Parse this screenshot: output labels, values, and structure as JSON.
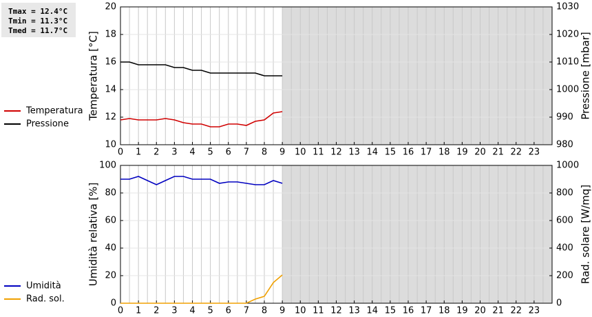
{
  "stats": [
    "Tmax = 12.4°C",
    "Tmin = 11.3°C",
    "Tmed = 11.7°C"
  ],
  "chart_data": [
    {
      "type": "line",
      "x": [
        0,
        0.5,
        1,
        1.5,
        2,
        2.5,
        3,
        3.5,
        4,
        4.5,
        5,
        5.5,
        6,
        6.5,
        7,
        7.5,
        8,
        8.5,
        9
      ],
      "xlim": [
        0,
        24
      ],
      "xticks": [
        0,
        1,
        2,
        3,
        4,
        5,
        6,
        7,
        8,
        9,
        10,
        11,
        12,
        13,
        14,
        15,
        16,
        17,
        18,
        19,
        20,
        21,
        22,
        23
      ],
      "ylim": [
        10,
        20
      ],
      "yticks": [
        10,
        12,
        14,
        16,
        18,
        20
      ],
      "y2lim": [
        980,
        1030
      ],
      "y2ticks": [
        980,
        990,
        1000,
        1010,
        1020,
        1030
      ],
      "ylabel": "Temperatura [°C]",
      "y2label": "Pressione [mbar]",
      "grid": true,
      "shaded_from": 9,
      "series": [
        {
          "name": "Temperatura",
          "color": "#d00000",
          "values": [
            11.8,
            11.9,
            11.8,
            11.8,
            11.8,
            11.9,
            11.8,
            11.6,
            11.5,
            11.5,
            11.3,
            11.3,
            11.5,
            11.5,
            11.4,
            11.7,
            11.8,
            12.3,
            12.4
          ]
        },
        {
          "name": "Pressione",
          "color": "#000000",
          "axis": "y2",
          "values": [
            1010,
            1010,
            1009,
            1009,
            1009,
            1009,
            1008,
            1008,
            1007,
            1007,
            1006,
            1006,
            1006,
            1006,
            1006,
            1006,
            1005,
            1005,
            1005
          ]
        }
      ]
    },
    {
      "type": "line",
      "x": [
        0,
        0.5,
        1,
        1.5,
        2,
        2.5,
        3,
        3.5,
        4,
        4.5,
        5,
        5.5,
        6,
        6.5,
        7,
        7.5,
        8,
        8.5,
        9
      ],
      "xlim": [
        0,
        24
      ],
      "xticks": [
        0,
        1,
        2,
        3,
        4,
        5,
        6,
        7,
        8,
        9,
        10,
        11,
        12,
        13,
        14,
        15,
        16,
        17,
        18,
        19,
        20,
        21,
        22,
        23
      ],
      "ylim": [
        0,
        100
      ],
      "yticks": [
        0,
        20,
        40,
        60,
        80,
        100
      ],
      "y2lim": [
        0,
        1000
      ],
      "y2ticks": [
        0,
        200,
        400,
        600,
        800,
        1000
      ],
      "ylabel": "Umidità relativa [%]",
      "y2label": "Rad. solare [W/mq]",
      "grid": true,
      "shaded_from": 9,
      "series": [
        {
          "name": "Umidità",
          "color": "#0000c0",
          "values": [
            90,
            90,
            92,
            89,
            86,
            89,
            92,
            92,
            90,
            90,
            90,
            87,
            88,
            88,
            87,
            86,
            86,
            89,
            87
          ]
        },
        {
          "name": "Rad. sol.",
          "color": "#f0a000",
          "axis": "y2",
          "values": [
            0,
            0,
            0,
            0,
            0,
            0,
            0,
            0,
            0,
            0,
            0,
            0,
            0,
            0,
            0,
            30,
            50,
            150,
            205
          ]
        }
      ]
    }
  ]
}
